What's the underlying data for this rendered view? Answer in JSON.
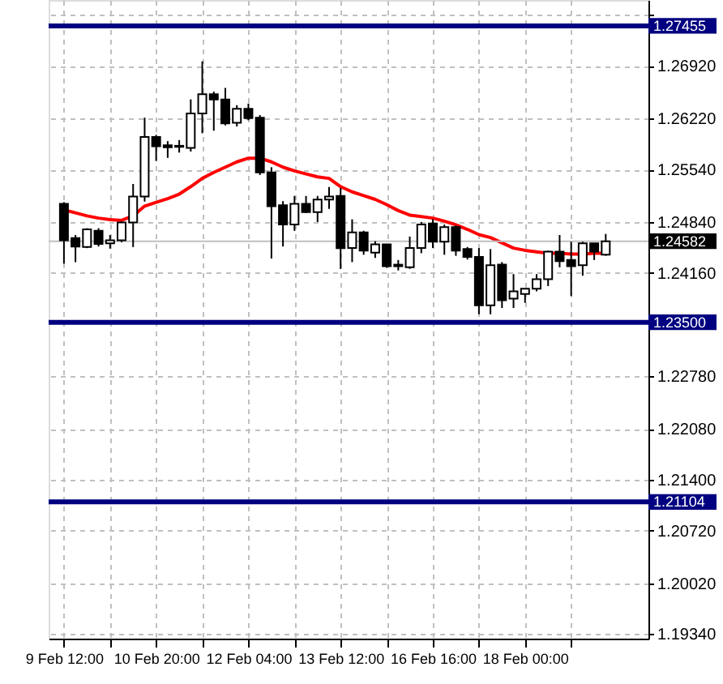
{
  "chart_data": {
    "type": "candlestick",
    "categories": [
      "9 Feb 12:00",
      null,
      null,
      null,
      null,
      null,
      null,
      null,
      "10 Feb 20:00",
      null,
      null,
      null,
      null,
      null,
      null,
      null,
      "12 Feb 04:00",
      null,
      null,
      null,
      null,
      null,
      null,
      null,
      "13 Feb 12:00",
      null,
      null,
      null,
      null,
      null,
      null,
      null,
      "16 Feb 16:00",
      null,
      null,
      null,
      null,
      null,
      null,
      null,
      "18 Feb 00:00",
      null,
      null,
      null,
      null,
      null,
      null,
      null
    ],
    "ohlc": [
      [
        1.25082,
        1.25103,
        1.24282,
        1.24595
      ],
      [
        1.24623,
        1.24664,
        1.24302,
        1.24511
      ],
      [
        1.24504,
        1.24755,
        1.2449,
        1.24741
      ],
      [
        1.2472,
        1.24755,
        1.24511,
        1.24546
      ],
      [
        1.24553,
        1.24664,
        1.24483,
        1.24595
      ],
      [
        1.24595,
        1.24845,
        1.24567,
        1.24831
      ],
      [
        1.24831,
        1.25346,
        1.24504,
        1.25179
      ],
      [
        1.25179,
        1.2623,
        1.2511,
        1.25973
      ],
      [
        1.25973,
        1.26001,
        1.25653,
        1.25848
      ],
      [
        1.25862,
        1.25917,
        1.25694,
        1.25834
      ],
      [
        1.25841,
        1.25931,
        1.25764,
        1.25855
      ],
      [
        1.25827,
        1.26474,
        1.25778,
        1.26286
      ],
      [
        1.26286,
        1.26982,
        1.26022,
        1.26544
      ],
      [
        1.26544,
        1.26578,
        1.26056,
        1.26474
      ],
      [
        1.26474,
        1.26627,
        1.26126,
        1.26154
      ],
      [
        1.26161,
        1.26397,
        1.26112,
        1.26349
      ],
      [
        1.26349,
        1.26418,
        1.26196,
        1.26223
      ],
      [
        1.2623,
        1.26265,
        1.25465,
        1.255
      ],
      [
        1.255,
        1.25569,
        1.24351,
        1.25047
      ],
      [
        1.25061,
        1.25117,
        1.24511,
        1.24804
      ],
      [
        1.24804,
        1.25186,
        1.2472,
        1.25082
      ],
      [
        1.25082,
        1.25186,
        1.24957,
        1.24971
      ],
      [
        1.24971,
        1.25186,
        1.24838,
        1.25138
      ],
      [
        1.25138,
        1.25305,
        1.25012,
        1.25179
      ],
      [
        1.25186,
        1.25291,
        1.24212,
        1.2449
      ],
      [
        1.24491,
        1.24874,
        1.24303,
        1.247
      ],
      [
        1.247,
        1.24721,
        1.24401,
        1.24456
      ],
      [
        1.24429,
        1.24582,
        1.24359,
        1.2454
      ],
      [
        1.2454,
        1.2454,
        1.24227,
        1.24248
      ],
      [
        1.24269,
        1.24331,
        1.24192,
        1.24248
      ],
      [
        1.24234,
        1.24644,
        1.24213,
        1.24491
      ],
      [
        1.24491,
        1.24839,
        1.24422,
        1.24804
      ],
      [
        1.24818,
        1.24874,
        1.24491,
        1.24575
      ],
      [
        1.24575,
        1.24804,
        1.24401,
        1.2477
      ],
      [
        1.2477,
        1.24791,
        1.24387,
        1.24456
      ],
      [
        1.24477,
        1.24505,
        1.24338,
        1.24373
      ],
      [
        1.24373,
        1.24491,
        1.23607,
        1.23726
      ],
      [
        1.23726,
        1.24477,
        1.23607,
        1.24262
      ],
      [
        1.24269,
        1.24303,
        1.23691,
        1.23795
      ],
      [
        1.23816,
        1.24143,
        1.23691,
        1.23913
      ],
      [
        1.23879,
        1.23948,
        1.2376,
        1.23948
      ],
      [
        1.23948,
        1.24143,
        1.23914,
        1.24074
      ],
      [
        1.24074,
        1.24456,
        1.23983,
        1.24443
      ],
      [
        1.24443,
        1.24665,
        1.24234,
        1.24317
      ],
      [
        1.24331,
        1.24575,
        1.23851,
        1.24248
      ],
      [
        1.24262,
        1.24575,
        1.24122,
        1.24554
      ],
      [
        1.24554,
        1.24554,
        1.24331,
        1.24443
      ],
      [
        1.24401,
        1.24679,
        1.24387,
        1.24582
      ]
    ],
    "series": [
      {
        "type": "line",
        "color": "#ff0000",
        "values": [
          1.25,
          1.2496,
          1.2492,
          1.2489,
          1.2487,
          1.2486,
          1.2492,
          1.2505,
          1.251,
          1.2515,
          1.2521,
          1.2531,
          1.2542,
          1.255,
          1.2557,
          1.2564,
          1.2569,
          1.2569,
          1.2564,
          1.2557,
          1.2552,
          1.2548,
          1.2544,
          1.2542,
          1.2531,
          1.2524,
          1.2519,
          1.2514,
          1.2507,
          1.2499,
          1.2493,
          1.2491,
          1.2489,
          1.2485,
          1.248,
          1.2474,
          1.2467,
          1.2463,
          1.2456,
          1.2449,
          1.2446,
          1.2444,
          1.2442,
          1.2442,
          1.2441,
          1.2441,
          1.2442,
          1.2442
        ]
      }
    ],
    "ylim": [
      1.1928,
      1.278
    ],
    "yticks": [
      {
        "value": 1.276,
        "label": null
      },
      {
        "value": 1.2692,
        "label": "1.26920"
      },
      {
        "value": 1.2622,
        "label": "1.26220"
      },
      {
        "value": 1.2554,
        "label": "1.25540"
      },
      {
        "value": 1.2484,
        "label": "1.24840"
      },
      {
        "value": 1.2416,
        "label": "1.24160"
      },
      {
        "value": 1.2278,
        "label": "1.22780"
      },
      {
        "value": 1.2208,
        "label": "1.22080"
      },
      {
        "value": 1.214,
        "label": "1.21400"
      },
      {
        "value": 1.2072,
        "label": "1.20720"
      },
      {
        "value": 1.2002,
        "label": "1.20020"
      },
      {
        "value": 1.1934,
        "label": "1.19340"
      }
    ],
    "ref_lines": [
      {
        "axis": "y",
        "value": 1.27455,
        "label": "1.27455",
        "color": "#000080"
      },
      {
        "axis": "y",
        "value": 1.235,
        "label": "1.23500",
        "color": "#000080"
      },
      {
        "axis": "y",
        "value": 1.21104,
        "label": "1.21104",
        "color": "#000080"
      },
      {
        "axis": "y",
        "value": 1.24582,
        "label": "1.24582",
        "color": "#c0c0c0"
      }
    ],
    "grid": true
  }
}
